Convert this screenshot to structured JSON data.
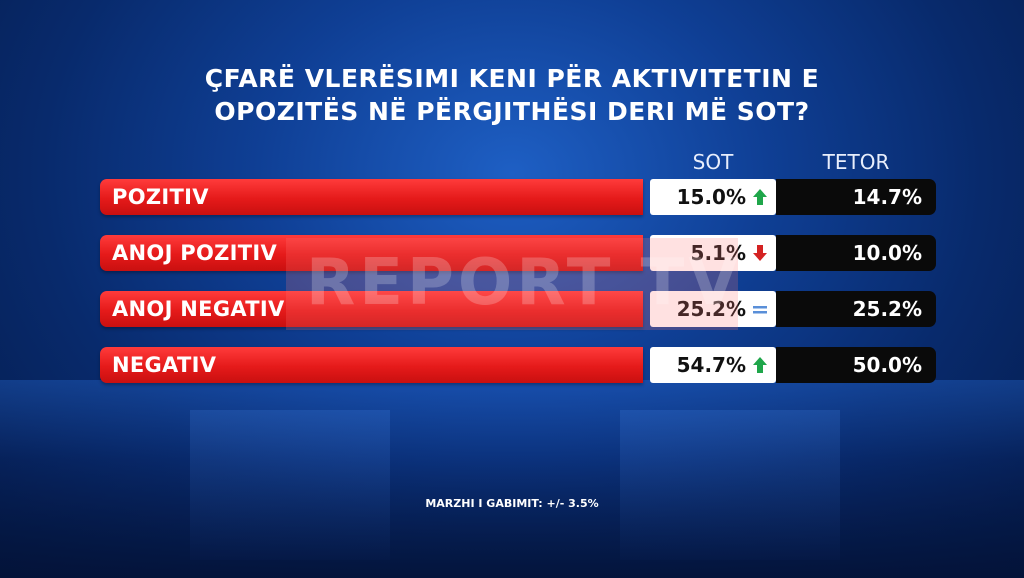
{
  "title_line1": "ÇFARË VLERËSIMI KENI PËR AKTIVITETIN E",
  "title_line2": "OPOZITËS NË PËRGJITHËSI DERI MË SOT?",
  "watermark": "REPORT TV",
  "chart_data": {
    "type": "table",
    "columns": [
      "SOT",
      "TETOR"
    ],
    "rows": [
      {
        "label": "POZITIV",
        "sot": "15.0%",
        "sot_trend": "up",
        "tetor": "14.7%"
      },
      {
        "label": "ANOJ POZITIV",
        "sot": "5.1%",
        "sot_trend": "down",
        "tetor": "10.0%"
      },
      {
        "label": "ANOJ NEGATIV",
        "sot": "25.2%",
        "sot_trend": "equal",
        "tetor": "25.2%"
      },
      {
        "label": "NEGATIV",
        "sot": "54.7%",
        "sot_trend": "up",
        "tetor": "50.0%"
      }
    ]
  },
  "colors": {
    "bar_red": "#e51a1a",
    "trend_up": "#1fa64a",
    "trend_down": "#d42222",
    "trend_equal": "#5a8fd8"
  },
  "footnote": "MARZHI I GABIMIT: +/- 3.5%"
}
